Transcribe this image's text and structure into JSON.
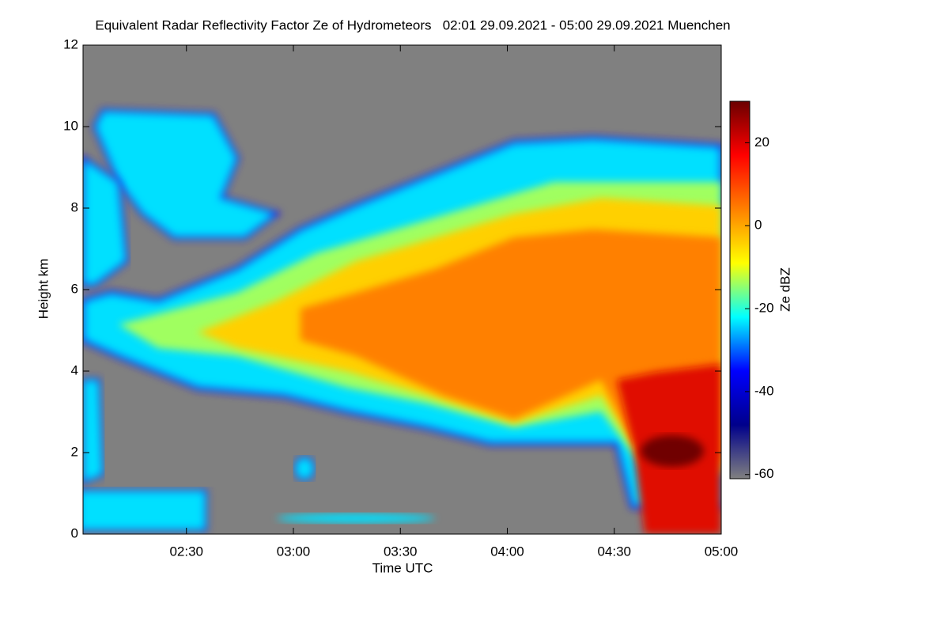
{
  "chart_data": {
    "type": "heatmap",
    "title": "Equivalent Radar Reflectivity Factor Ze of Hydrometeors   02:01 29.09.2021 - 05:00 29.09.2021 Muenchen",
    "xlabel": "Time UTC",
    "ylabel": "Height km",
    "colorbar_label": "Ze dBZ",
    "xlim": [
      121,
      300
    ],
    "xticks": [
      {
        "value": 150,
        "label": "02:30"
      },
      {
        "value": 180,
        "label": "03:00"
      },
      {
        "value": 210,
        "label": "03:30"
      },
      {
        "value": 240,
        "label": "04:00"
      },
      {
        "value": 270,
        "label": "04:30"
      },
      {
        "value": 300,
        "label": "05:00"
      }
    ],
    "ylim": [
      0,
      12
    ],
    "yticks": [
      0,
      2,
      4,
      6,
      8,
      10,
      12
    ],
    "clim": [
      -61,
      30
    ],
    "cticks": [
      -60,
      -40,
      -20,
      0,
      20
    ],
    "colorscale": [
      "#808080",
      "#00008b",
      "#0000ff",
      "#00ffff",
      "#ffff00",
      "#ff8000",
      "#ff0000",
      "#6b0000"
    ],
    "background": "#808080"
  }
}
